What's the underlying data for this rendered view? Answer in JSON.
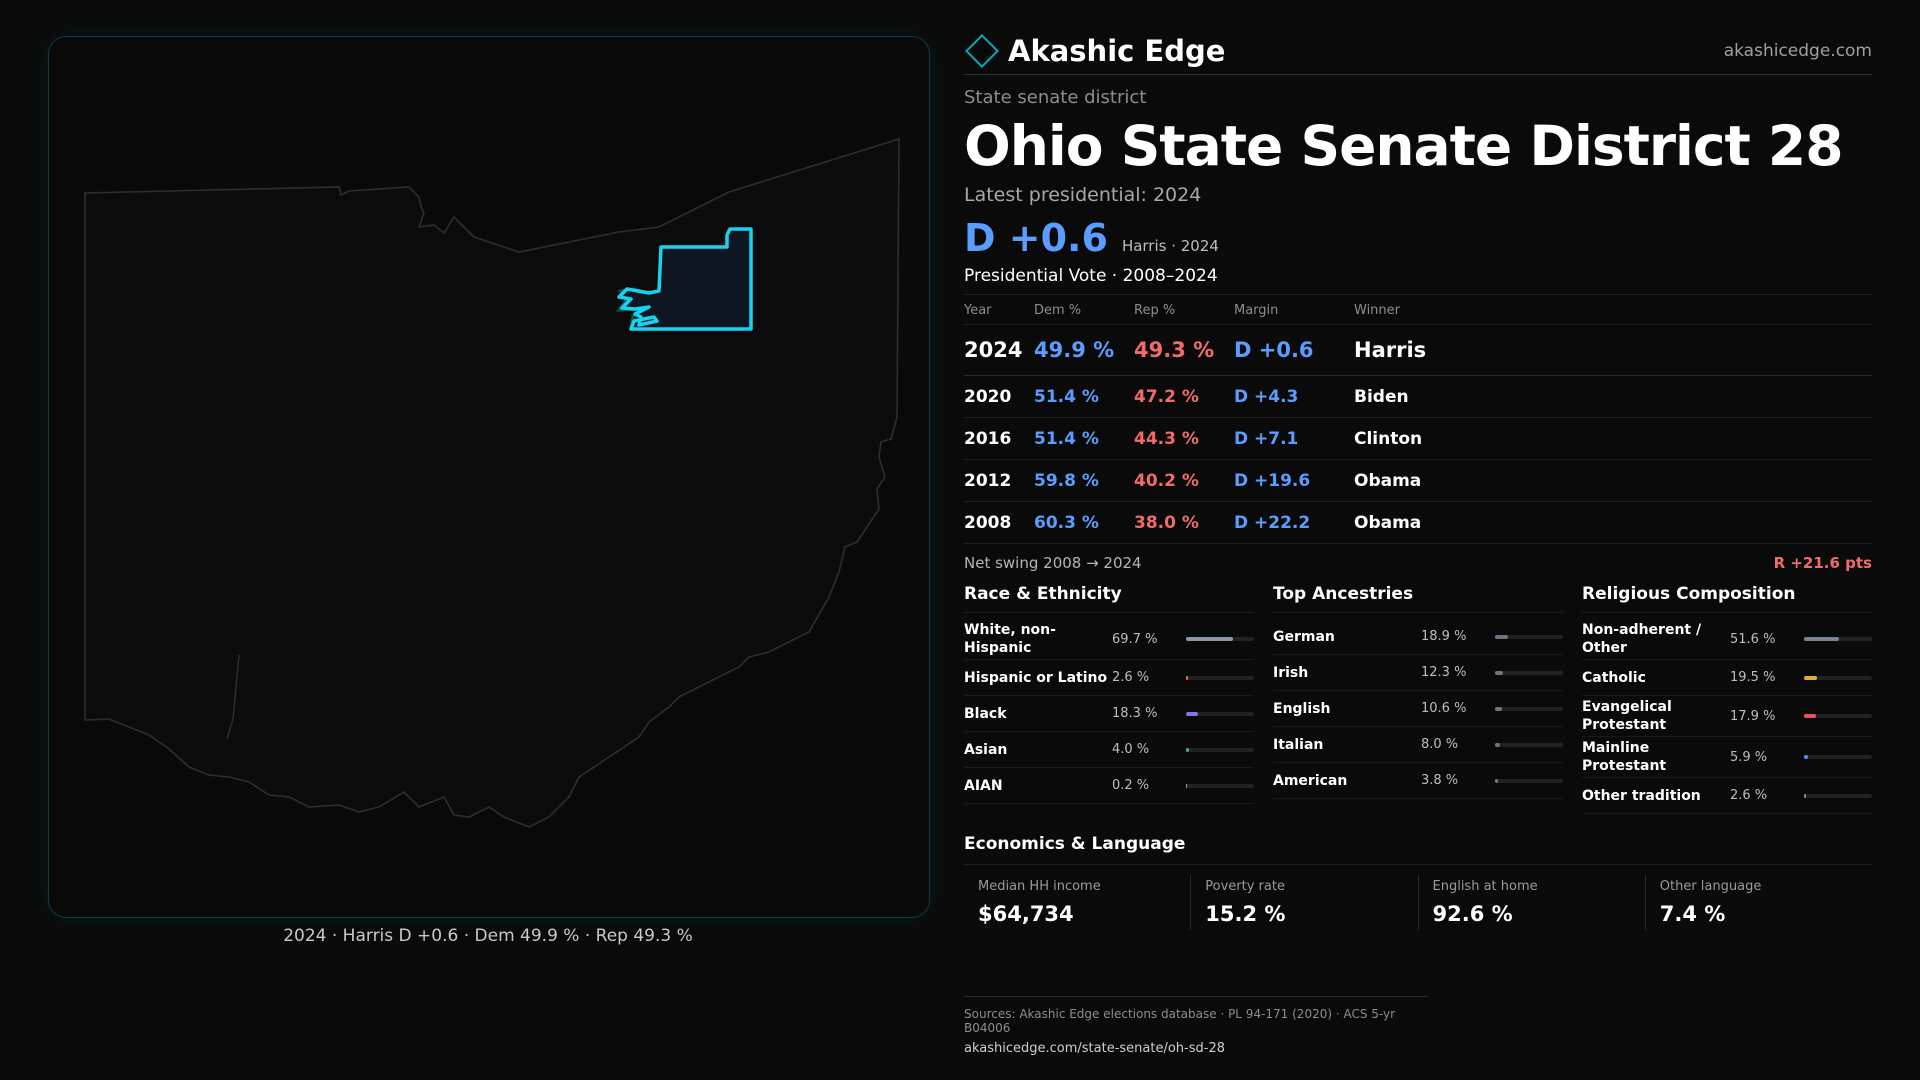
{
  "brand": {
    "name": "Akashic Edge",
    "site": "akashicedge.com"
  },
  "district": {
    "kind": "State senate district",
    "title": "Ohio State Senate District 28",
    "latest_label": "Latest presidential: 2024",
    "margin": "D +0.6",
    "margin_sub": "Harris · 2024"
  },
  "map": {
    "caption": "2024 · Harris D +0.6 · Dem 49.9 % · Rep 49.3 %"
  },
  "vote": {
    "title": "Presidential Vote · 2008–2024",
    "headers": {
      "year": "Year",
      "dem": "Dem %",
      "rep": "Rep %",
      "margin": "Margin",
      "winner": "Winner"
    },
    "rows": [
      {
        "year": "2024",
        "dem": "49.9 %",
        "rep": "49.3 %",
        "margin": "D +0.6",
        "winner": "Harris"
      },
      {
        "year": "2020",
        "dem": "51.4 %",
        "rep": "47.2 %",
        "margin": "D +4.3",
        "winner": "Biden"
      },
      {
        "year": "2016",
        "dem": "51.4 %",
        "rep": "44.3 %",
        "margin": "D +7.1",
        "winner": "Clinton"
      },
      {
        "year": "2012",
        "dem": "59.8 %",
        "rep": "40.2 %",
        "margin": "D +19.6",
        "winner": "Obama"
      },
      {
        "year": "2008",
        "dem": "60.3 %",
        "rep": "38.0 %",
        "margin": "D +22.2",
        "winner": "Obama"
      }
    ],
    "swing_label": "Net swing 2008 → 2024",
    "swing_value": "R +21.6 pts"
  },
  "race": {
    "title": "Race & Ethnicity",
    "items": [
      {
        "label": "White, non-Hispanic",
        "pct": "69.7 %",
        "value": 69.7,
        "color": "#8c97a8"
      },
      {
        "label": "Hispanic or Latino",
        "pct": "2.6 %",
        "value": 2.6,
        "color": "#e0733a"
      },
      {
        "label": "Black",
        "pct": "18.3 %",
        "value": 18.3,
        "color": "#8c72e0"
      },
      {
        "label": "Asian",
        "pct": "4.0 %",
        "value": 4.0,
        "color": "#2fb88a"
      },
      {
        "label": "AIAN",
        "pct": "0.2 %",
        "value": 0.2,
        "color": "#c0a060"
      }
    ]
  },
  "ancestry": {
    "title": "Top Ancestries",
    "items": [
      {
        "label": "German",
        "pct": "18.9 %",
        "value": 18.9,
        "color": "#6b7684"
      },
      {
        "label": "Irish",
        "pct": "12.3 %",
        "value": 12.3,
        "color": "#6b7684"
      },
      {
        "label": "English",
        "pct": "10.6 %",
        "value": 10.6,
        "color": "#6b7684"
      },
      {
        "label": "Italian",
        "pct": "8.0 %",
        "value": 8.0,
        "color": "#6b7684"
      },
      {
        "label": "American",
        "pct": "3.8 %",
        "value": 3.8,
        "color": "#6b7684"
      }
    ]
  },
  "religion": {
    "title": "Religious Composition",
    "items": [
      {
        "label": "Non-adherent / Other",
        "pct": "51.6 %",
        "value": 51.6,
        "color": "#7a8594"
      },
      {
        "label": "Catholic",
        "pct": "19.5 %",
        "value": 19.5,
        "color": "#e0b030"
      },
      {
        "label": "Evangelical Protestant",
        "pct": "17.9 %",
        "value": 17.9,
        "color": "#e05a5a"
      },
      {
        "label": "Mainline Protestant",
        "pct": "5.9 %",
        "value": 5.9,
        "color": "#5b8dff"
      },
      {
        "label": "Other tradition",
        "pct": "2.6 %",
        "value": 2.6,
        "color": "#8c8c8c"
      }
    ]
  },
  "economics": {
    "title": "Economics & Language",
    "items": [
      {
        "label": "Median HH income",
        "value": "$64,734"
      },
      {
        "label": "Poverty rate",
        "value": "15.2 %"
      },
      {
        "label": "English at home",
        "value": "92.6 %"
      },
      {
        "label": "Other language",
        "value": "7.4 %"
      }
    ]
  },
  "sources": {
    "line1": "Sources: Akashic Edge elections database · PL 94-171 (2020) · ACS 5-yr B04006",
    "line2": "akashicedge.com/state-senate/oh-sd-28"
  },
  "colors": {
    "dem": "#5b9dff",
    "rep": "#f06b6b",
    "accent": "#14d4f0"
  }
}
